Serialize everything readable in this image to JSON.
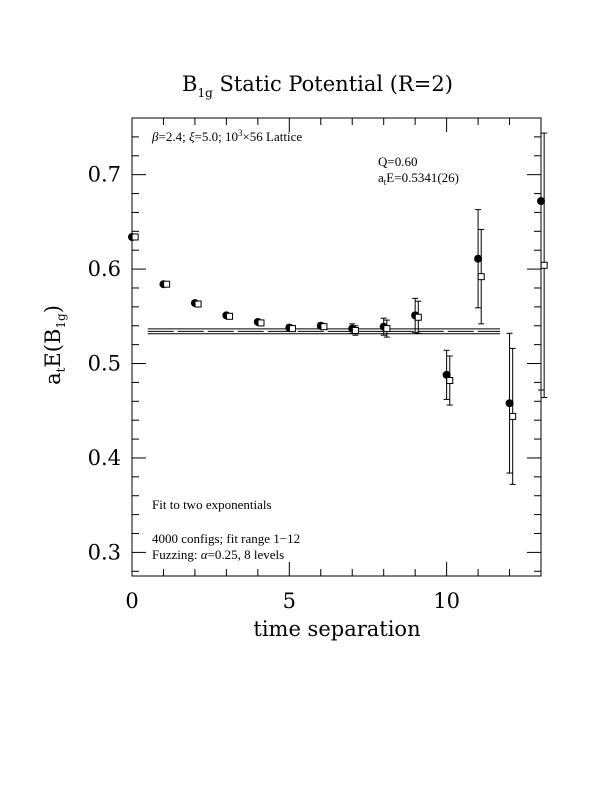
{
  "chart_data": {
    "type": "scatter",
    "title_main": "B",
    "title_sub": "1g",
    "title_rest": " Static Potential (R=2)",
    "xlabel": "time separation",
    "ylabel_a": "a",
    "ylabel_t": "t",
    "ylabel_e": "E(B",
    "ylabel_sub": "1g",
    "ylabel_close": ")",
    "xlim": [
      0,
      13
    ],
    "ylim": [
      0.275,
      0.76
    ],
    "xticks_major": [
      0,
      5,
      10
    ],
    "xtick_labels": [
      "0",
      "5",
      "10"
    ],
    "yticks_major": [
      0.3,
      0.4,
      0.5,
      0.6,
      0.7
    ],
    "ytick_labels": [
      "0.3",
      "0.4",
      "0.5",
      "0.6",
      "0.7"
    ],
    "annotations": {
      "lattice_beta": "β",
      "lattice_rest": "=2.4; ",
      "lattice_xi": "ξ",
      "lattice_rest2": "=5.0; 10",
      "lattice_exp": "3",
      "lattice_rest3": "×56 Lattice",
      "q_value": "Q=0.60",
      "energy_a": "a",
      "energy_t": "t",
      "energy_rest": "E=0.5341(26)",
      "fit_desc": "Fit to two exponentials",
      "configs": "4000 configs; fit range 1−12",
      "fuzz_a": "Fuzzing: ",
      "fuzz_alpha": "α",
      "fuzz_b": "=0.25, 8 levels"
    },
    "fit": {
      "value": 0.5341,
      "error": 0.0026,
      "x_range": [
        0.5,
        11.7
      ]
    },
    "series": [
      {
        "marker": "filled-circle",
        "x": [
          0,
          1,
          2,
          3,
          4,
          5,
          6,
          7,
          8,
          9,
          10,
          11,
          12,
          13
        ],
        "y": [
          0.634,
          0.584,
          0.564,
          0.551,
          0.544,
          0.538,
          0.54,
          0.537,
          0.539,
          0.551,
          0.488,
          0.611,
          0.458,
          0.672
        ],
        "err": [
          0.002,
          0.002,
          0.002,
          0.002,
          0.002,
          0.003,
          0.003,
          0.005,
          0.009,
          0.018,
          0.026,
          0.052,
          0.074,
          0.2
        ]
      },
      {
        "marker": "open-square",
        "x": [
          0.1,
          1.1,
          2.1,
          3.1,
          4.1,
          5.1,
          6.1,
          7.1,
          8.1,
          9.1,
          10.1,
          11.1,
          12.1,
          13.1
        ],
        "y": [
          0.634,
          0.584,
          0.563,
          0.55,
          0.543,
          0.537,
          0.539,
          0.535,
          0.537,
          0.549,
          0.482,
          0.592,
          0.444,
          0.604
        ],
        "err": [
          0.002,
          0.002,
          0.002,
          0.002,
          0.002,
          0.003,
          0.003,
          0.005,
          0.009,
          0.017,
          0.026,
          0.05,
          0.072,
          0.14
        ]
      }
    ]
  }
}
